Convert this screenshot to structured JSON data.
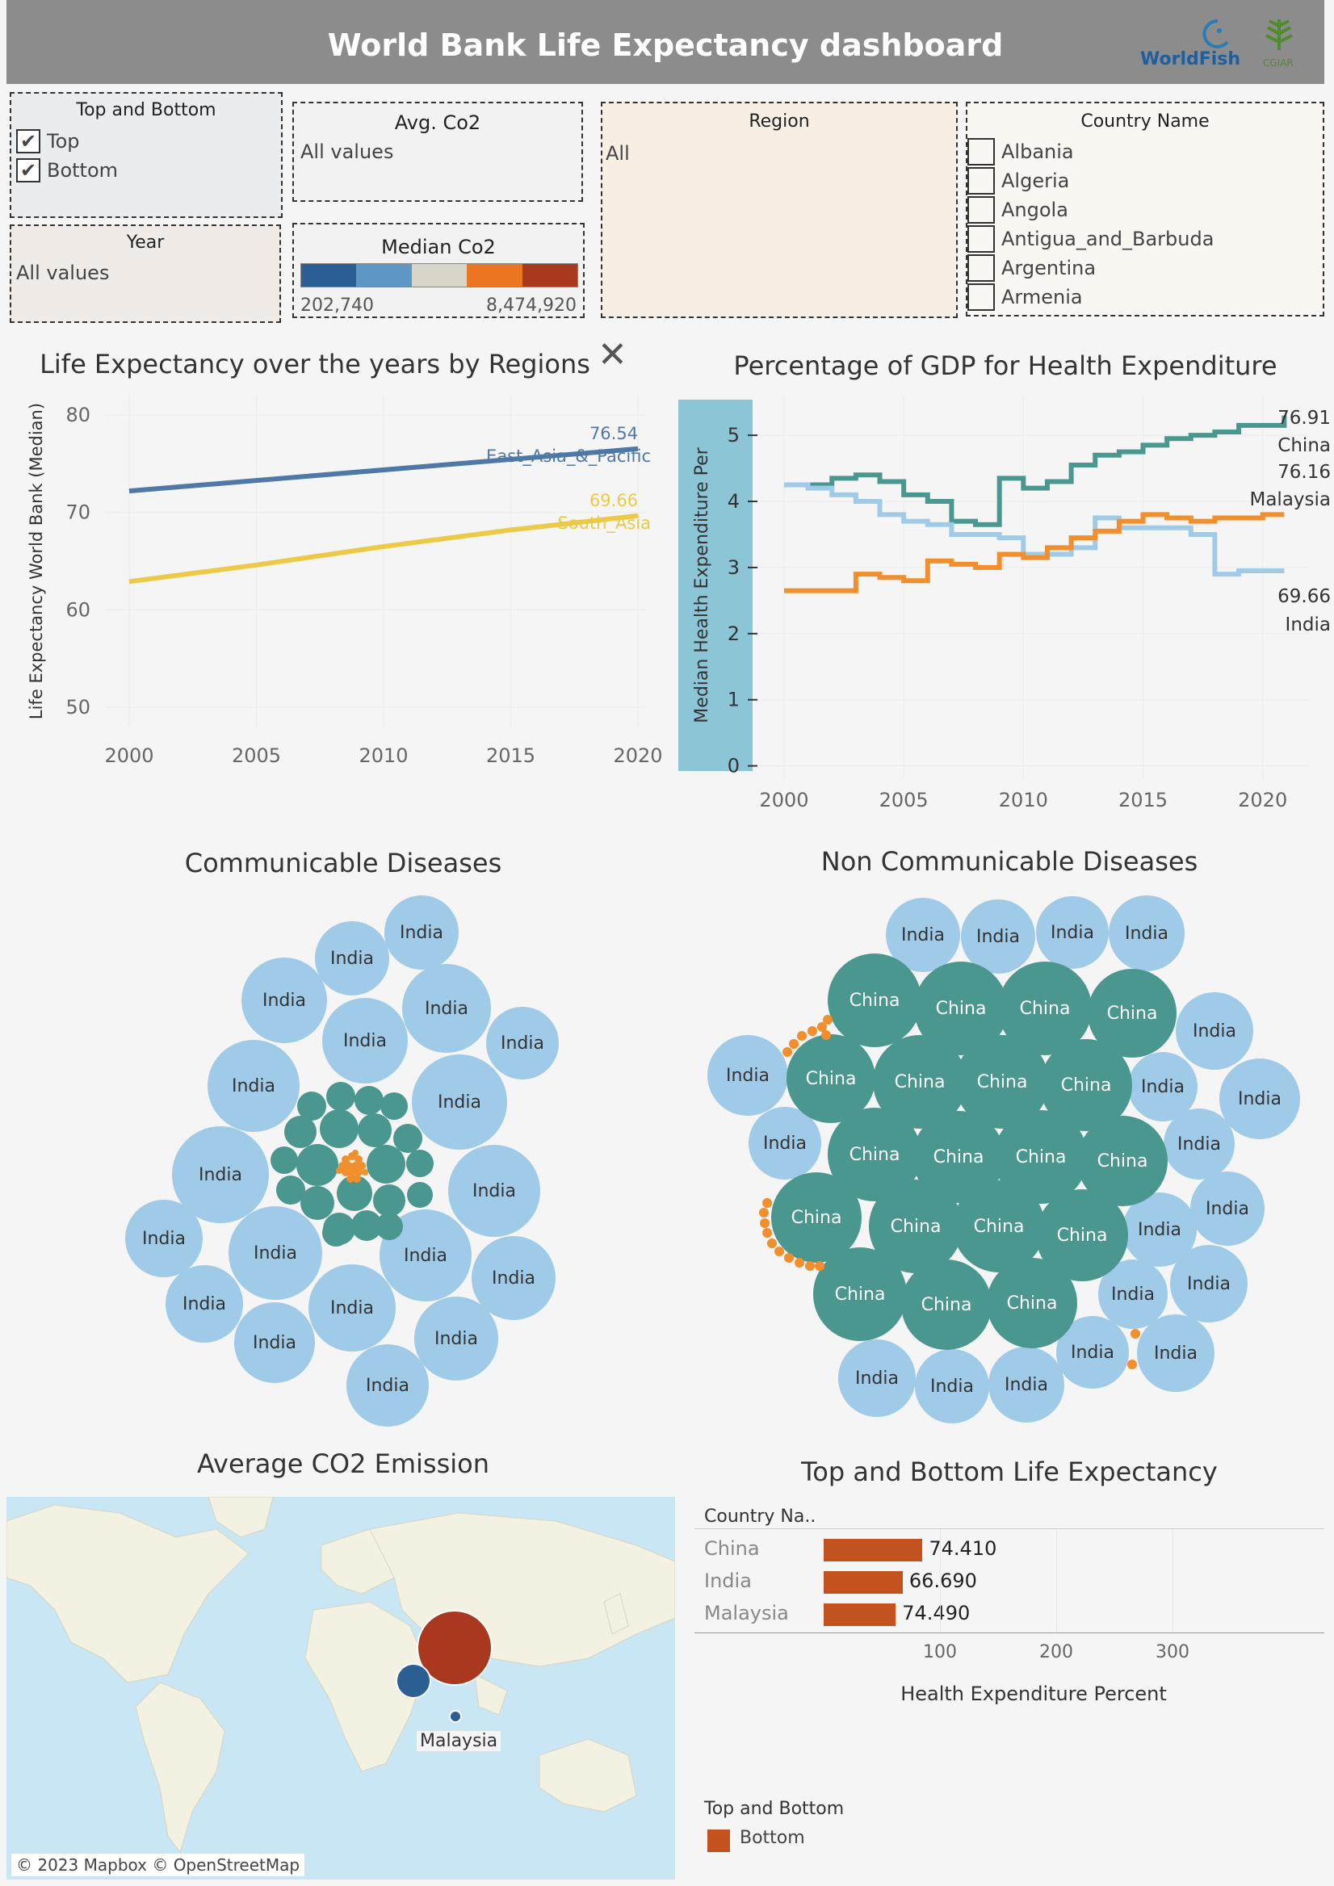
{
  "header": {
    "title": "World Bank Life Expectancy dashboard",
    "logo_worldfish": "WorldFish",
    "logo_cgiar": "CGIAR"
  },
  "filters": {
    "top_bottom": {
      "title": "Top and Bottom",
      "options": [
        {
          "label": "Top",
          "checked": true
        },
        {
          "label": "Bottom",
          "checked": true
        }
      ]
    },
    "avg_co2": {
      "title": "Avg. Co2",
      "value": "All values"
    },
    "region": {
      "title": "Region",
      "value": "All"
    },
    "country": {
      "title": "Country Name",
      "options": [
        "Albania",
        "Algeria",
        "Angola",
        "Antigua_and_Barbuda",
        "Argentina",
        "Armenia"
      ]
    },
    "year": {
      "title": "Year",
      "value": "All values"
    },
    "median_co2": {
      "title": "Median Co2",
      "min": "202,740",
      "max": "8,474,920",
      "colors": [
        "#2c5f94",
        "#5e97c6",
        "#d9d5c9",
        "#ec7522",
        "#a8391f"
      ]
    }
  },
  "life_chart": {
    "title": "Life Expectancy over the years by Regions",
    "close_glyph": "✕",
    "chart_data": {
      "type": "line",
      "ylabel": "Life Expectancy World Bank (Median)",
      "xlabel": "",
      "x_ticks": [
        "2000",
        "2005",
        "2010",
        "2015",
        "2020"
      ],
      "y_ticks": [
        "80",
        "70",
        "60",
        "50"
      ],
      "xlim": [
        2000,
        2020
      ],
      "ylim": [
        48,
        82
      ],
      "series": [
        {
          "name": "East_Asia_&_Pacific",
          "color": "#4e79a7",
          "points": [
            [
              2000,
              72.2
            ],
            [
              2020,
              76.54
            ]
          ],
          "end_label": "76.54"
        },
        {
          "name": "South_Asia",
          "color": "#edc948",
          "points": [
            [
              2000,
              62.9
            ],
            [
              2005,
              64.6
            ],
            [
              2010,
              66.5
            ],
            [
              2015,
              68.2
            ],
            [
              2020,
              69.66
            ]
          ],
          "end_label": "69.66"
        }
      ]
    }
  },
  "gdp_chart": {
    "title": "Percentage of GDP for Health Expenditure",
    "chart_data": {
      "type": "line",
      "ylabel": "Median Health Expenditure Per",
      "xlabel": "",
      "x_ticks": [
        "2000",
        "2005",
        "2010",
        "2015",
        "2020"
      ],
      "y_ticks": [
        "5",
        "4",
        "3",
        "2",
        "1",
        "0"
      ],
      "xlim": [
        1999.9,
        2021.9
      ],
      "ylim": [
        -0.2,
        5.6
      ],
      "series": [
        {
          "name": "China",
          "color": "#4a978f",
          "end_label": "76.91",
          "points": [
            [
              2000,
              4.25
            ],
            [
              2001,
              4.25
            ],
            [
              2002,
              4.35
            ],
            [
              2003,
              4.4
            ],
            [
              2004,
              4.3
            ],
            [
              2005,
              4.1
            ],
            [
              2006,
              4.0
            ],
            [
              2007,
              3.7
            ],
            [
              2008,
              3.65
            ],
            [
              2009,
              4.35
            ],
            [
              2010,
              4.2
            ],
            [
              2011,
              4.3
            ],
            [
              2012,
              4.55
            ],
            [
              2013,
              4.7
            ],
            [
              2014,
              4.75
            ],
            [
              2015,
              4.85
            ],
            [
              2016,
              4.95
            ],
            [
              2017,
              5.0
            ],
            [
              2018,
              5.05
            ],
            [
              2019,
              5.15
            ],
            [
              2020,
              5.15
            ],
            [
              2020.9,
              5.3
            ]
          ]
        },
        {
          "name": "Malaysia",
          "color": "#a0cbe8",
          "end_label": "76.16",
          "points": [
            [
              2000,
              4.25
            ],
            [
              2001,
              4.2
            ],
            [
              2002,
              4.1
            ],
            [
              2003,
              4.0
            ],
            [
              2004,
              3.8
            ],
            [
              2005,
              3.7
            ],
            [
              2006,
              3.65
            ],
            [
              2007,
              3.5
            ],
            [
              2008,
              3.5
            ],
            [
              2009,
              3.45
            ],
            [
              2010,
              3.2
            ],
            [
              2011,
              3.2
            ],
            [
              2012,
              3.3
            ],
            [
              2013,
              3.75
            ],
            [
              2014,
              3.6
            ],
            [
              2015,
              3.6
            ],
            [
              2016,
              3.6
            ],
            [
              2017,
              3.5
            ],
            [
              2018,
              2.9
            ],
            [
              2019,
              2.95
            ],
            [
              2020.9,
              2.95
            ]
          ]
        },
        {
          "name": "India",
          "color": "#f28e2b",
          "end_label": "69.66",
          "points": [
            [
              2000,
              2.65
            ],
            [
              2001,
              2.65
            ],
            [
              2002,
              2.65
            ],
            [
              2003,
              2.9
            ],
            [
              2004,
              2.85
            ],
            [
              2005,
              2.8
            ],
            [
              2006,
              3.1
            ],
            [
              2007,
              3.05
            ],
            [
              2008,
              3.0
            ],
            [
              2009,
              3.2
            ],
            [
              2010,
              3.15
            ],
            [
              2011,
              3.3
            ],
            [
              2012,
              3.45
            ],
            [
              2013,
              3.55
            ],
            [
              2014,
              3.7
            ],
            [
              2015,
              3.8
            ],
            [
              2016,
              3.75
            ],
            [
              2017,
              3.7
            ],
            [
              2018,
              3.75
            ],
            [
              2019,
              3.75
            ],
            [
              2020,
              3.8
            ],
            [
              2020.9,
              3.8
            ]
          ]
        }
      ]
    },
    "labels": {
      "china_val": "76.91",
      "china": "China",
      "malaysia_val": "76.16",
      "malaysia": "Malaysia",
      "india_val": "69.66",
      "india": "India"
    }
  },
  "communicable": {
    "title": "Communicable Diseases",
    "bubble_label": "India",
    "bubbles": [
      [
        522,
        1155,
        46
      ],
      [
        436,
        1187,
        46
      ],
      [
        352,
        1239,
        53
      ],
      [
        553,
        1249,
        55
      ],
      [
        452,
        1289,
        53
      ],
      [
        647,
        1292,
        45
      ],
      [
        314,
        1345,
        57
      ],
      [
        569,
        1365,
        59
      ],
      [
        273,
        1455,
        60
      ],
      [
        612,
        1475,
        57
      ],
      [
        203,
        1534,
        48
      ],
      [
        341,
        1552,
        58
      ],
      [
        527,
        1555,
        57
      ],
      [
        636,
        1583,
        52
      ],
      [
        253,
        1615,
        48
      ],
      [
        436,
        1620,
        54
      ],
      [
        565,
        1658,
        52
      ],
      [
        340,
        1663,
        50
      ],
      [
        480,
        1716,
        51
      ]
    ],
    "green_dots": [
      [
        386,
        1370,
        18
      ],
      [
        422,
        1358,
        18
      ],
      [
        457,
        1363,
        18
      ],
      [
        488,
        1370,
        17
      ],
      [
        372,
        1402,
        20
      ],
      [
        420,
        1398,
        24
      ],
      [
        464,
        1400,
        21
      ],
      [
        505,
        1410,
        18
      ],
      [
        352,
        1437,
        17
      ],
      [
        393,
        1443,
        26
      ],
      [
        478,
        1442,
        24
      ],
      [
        520,
        1441,
        17
      ],
      [
        360,
        1474,
        18
      ],
      [
        439,
        1478,
        22
      ],
      [
        393,
        1490,
        21
      ],
      [
        482,
        1487,
        20
      ],
      [
        520,
        1480,
        16
      ],
      [
        420,
        1522,
        20
      ],
      [
        454,
        1518,
        19
      ],
      [
        482,
        1519,
        17
      ],
      [
        416,
        1527,
        17
      ]
    ],
    "orange_dots": [
      [
        428,
        1436,
        5
      ],
      [
        436,
        1432,
        5
      ],
      [
        444,
        1436,
        5
      ],
      [
        424,
        1444,
        5
      ],
      [
        432,
        1444,
        5
      ],
      [
        440,
        1444,
        5
      ],
      [
        448,
        1444,
        5
      ],
      [
        428,
        1452,
        5
      ],
      [
        436,
        1452,
        5
      ],
      [
        444,
        1452,
        5
      ],
      [
        434,
        1460,
        5
      ],
      [
        442,
        1460,
        5
      ],
      [
        420,
        1450,
        4
      ],
      [
        452,
        1452,
        4
      ],
      [
        440,
        1428,
        4
      ]
    ]
  },
  "noncommunicable": {
    "title": "Non Communicable Diseases",
    "india_label": "India",
    "china_label": "China",
    "india": [
      [
        1143,
        1158,
        46
      ],
      [
        1236,
        1160,
        46
      ],
      [
        1328,
        1155,
        45
      ],
      [
        1420,
        1156,
        47
      ],
      [
        1504,
        1277,
        48
      ],
      [
        926,
        1332,
        50
      ],
      [
        1440,
        1346,
        43
      ],
      [
        1560,
        1361,
        50
      ],
      [
        972,
        1416,
        45
      ],
      [
        1485,
        1417,
        44
      ],
      [
        1520,
        1497,
        46
      ],
      [
        1436,
        1523,
        46
      ],
      [
        1497,
        1590,
        48
      ],
      [
        1403,
        1603,
        43
      ],
      [
        1086,
        1707,
        48
      ],
      [
        1353,
        1675,
        45
      ],
      [
        1456,
        1676,
        48
      ],
      [
        1179,
        1717,
        46
      ],
      [
        1271,
        1715,
        47
      ]
    ],
    "china": [
      [
        1083,
        1239,
        58
      ],
      [
        1190,
        1249,
        58
      ],
      [
        1294,
        1249,
        58
      ],
      [
        1402,
        1255,
        55
      ],
      [
        1029,
        1336,
        55
      ],
      [
        1139,
        1340,
        58
      ],
      [
        1241,
        1340,
        58
      ],
      [
        1345,
        1344,
        57
      ],
      [
        1083,
        1430,
        58
      ],
      [
        1187,
        1433,
        57
      ],
      [
        1289,
        1433,
        58
      ],
      [
        1390,
        1438,
        56
      ],
      [
        1011,
        1508,
        56
      ],
      [
        1134,
        1519,
        58
      ],
      [
        1237,
        1519,
        57
      ],
      [
        1340,
        1530,
        57
      ],
      [
        1065,
        1603,
        58
      ],
      [
        1172,
        1616,
        56
      ],
      [
        1278,
        1614,
        56
      ]
    ],
    "orange_dots": [
      [
        975,
        1303,
        6
      ],
      [
        983,
        1293,
        6
      ],
      [
        993,
        1283,
        6
      ],
      [
        1006,
        1277,
        6
      ],
      [
        1018,
        1272,
        6
      ],
      [
        1025,
        1263,
        6
      ],
      [
        1023,
        1282,
        6
      ],
      [
        950,
        1490,
        6
      ],
      [
        946,
        1502,
        6
      ],
      [
        947,
        1515,
        6
      ],
      [
        950,
        1527,
        6
      ],
      [
        956,
        1540,
        6
      ],
      [
        965,
        1550,
        6
      ],
      [
        977,
        1558,
        6
      ],
      [
        990,
        1564,
        6
      ],
      [
        1003,
        1568,
        6
      ],
      [
        1015,
        1568,
        6
      ],
      [
        1406,
        1652,
        6
      ],
      [
        1402,
        1690,
        6
      ]
    ]
  },
  "co2_map": {
    "title": "Average CO2 Emission",
    "credit": "© 2023 Mapbox © OpenStreetMap",
    "label_malaysia": "Malaysia"
  },
  "top_bottom_chart": {
    "title": "Top and Bottom Life Expectancy",
    "column_header": "Country Na..",
    "chart_data": {
      "type": "bar",
      "categories": [
        "China",
        "India",
        "Malaysia"
      ],
      "values": [
        85.0,
        68.0,
        62.0
      ],
      "value_labels": [
        "74.410",
        "66.690",
        "74.490"
      ],
      "xlabel": "Health Expenditure Percent",
      "x_ticks": [
        "100",
        "200",
        "300"
      ],
      "xlim": [
        0,
        375
      ],
      "color": "#c4521e"
    },
    "legend_title": "Top and Bottom",
    "legend_item": "Bottom"
  }
}
